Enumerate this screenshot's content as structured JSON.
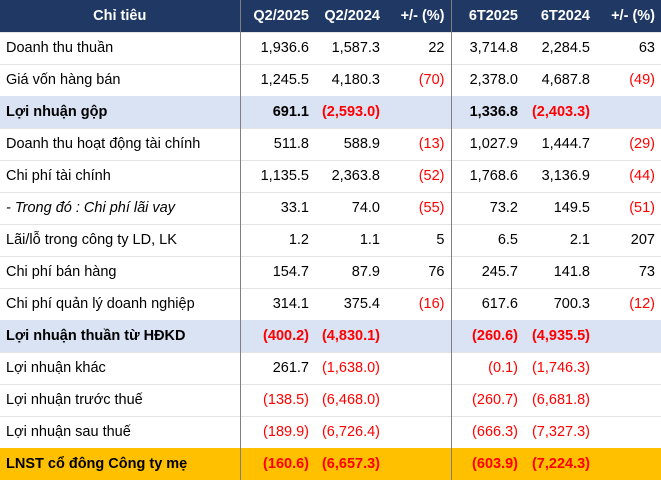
{
  "header": {
    "indicator": "Chỉ tiêu",
    "q2_2025": "Q2/2025",
    "q2_2024": "Q2/2024",
    "q_change": "+/- (%)",
    "h1_2025": "6T2025",
    "h1_2024": "6T2024",
    "h_change": "+/- (%)"
  },
  "rows": [
    {
      "label": "Doanh thu thuần",
      "q25": "1,936.6",
      "q24": "1,587.3",
      "qc": "22",
      "h25": "3,714.8",
      "h24": "2,284.5",
      "hc": "63"
    },
    {
      "label": "Giá vốn hàng bán",
      "q25": "1,245.5",
      "q24": "4,180.3",
      "qc": "(70)",
      "h25": "2,378.0",
      "h24": "4,687.8",
      "hc": "(49)"
    },
    {
      "label": "Lợi nhuận gộp",
      "q25": "691.1",
      "q24": "(2,593.0)",
      "qc": "",
      "h25": "1,336.8",
      "h24": "(2,403.3)",
      "hc": ""
    },
    {
      "label": "Doanh thu hoạt động tài chính",
      "q25": "511.8",
      "q24": "588.9",
      "qc": "(13)",
      "h25": "1,027.9",
      "h24": "1,444.7",
      "hc": "(29)"
    },
    {
      "label": "Chi phí tài chính",
      "q25": "1,135.5",
      "q24": "2,363.8",
      "qc": "(52)",
      "h25": "1,768.6",
      "h24": "3,136.9",
      "hc": "(44)"
    },
    {
      "label": "- Trong đó : Chi phí lãi vay",
      "q25": "33.1",
      "q24": "74.0",
      "qc": "(55)",
      "h25": "73.2",
      "h24": "149.5",
      "hc": "(51)"
    },
    {
      "label": "Lãi/lỗ trong công ty LD, LK",
      "q25": "1.2",
      "q24": "1.1",
      "qc": "5",
      "h25": "6.5",
      "h24": "2.1",
      "hc": "207"
    },
    {
      "label": "Chi phí bán hàng",
      "q25": "154.7",
      "q24": "87.9",
      "qc": "76",
      "h25": "245.7",
      "h24": "141.8",
      "hc": "73"
    },
    {
      "label": "Chi phí quản lý doanh nghiệp",
      "q25": "314.1",
      "q24": "375.4",
      "qc": "(16)",
      "h25": "617.6",
      "h24": "700.3",
      "hc": "(12)"
    },
    {
      "label": "Lợi nhuận thuần từ HĐKD",
      "q25": "(400.2)",
      "q24": "(4,830.1)",
      "qc": "",
      "h25": "(260.6)",
      "h24": "(4,935.5)",
      "hc": ""
    },
    {
      "label": "Lợi nhuận khác",
      "q25": "261.7",
      "q24": "(1,638.0)",
      "qc": "",
      "h25": "(0.1)",
      "h24": "(1,746.3)",
      "hc": ""
    },
    {
      "label": "Lợi nhuận trước thuế",
      "q25": "(138.5)",
      "q24": "(6,468.0)",
      "qc": "",
      "h25": "(260.7)",
      "h24": "(6,681.8)",
      "hc": ""
    },
    {
      "label": "Lợi nhuận sau thuế",
      "q25": "(189.9)",
      "q24": "(6,726.4)",
      "qc": "",
      "h25": "(666.3)",
      "h24": "(7,327.3)",
      "hc": ""
    },
    {
      "label": "LNST cổ đông Công ty mẹ",
      "q25": "(160.6)",
      "q24": "(6,657.3)",
      "qc": "",
      "h25": "(603.9)",
      "h24": "(7,224.3)",
      "hc": ""
    }
  ],
  "colors": {
    "header_bg": "#1f3864",
    "header_text": "#ffffff",
    "highlight_blue": "#dae3f3",
    "highlight_gold": "#ffc000",
    "negative": "#ff0000"
  }
}
